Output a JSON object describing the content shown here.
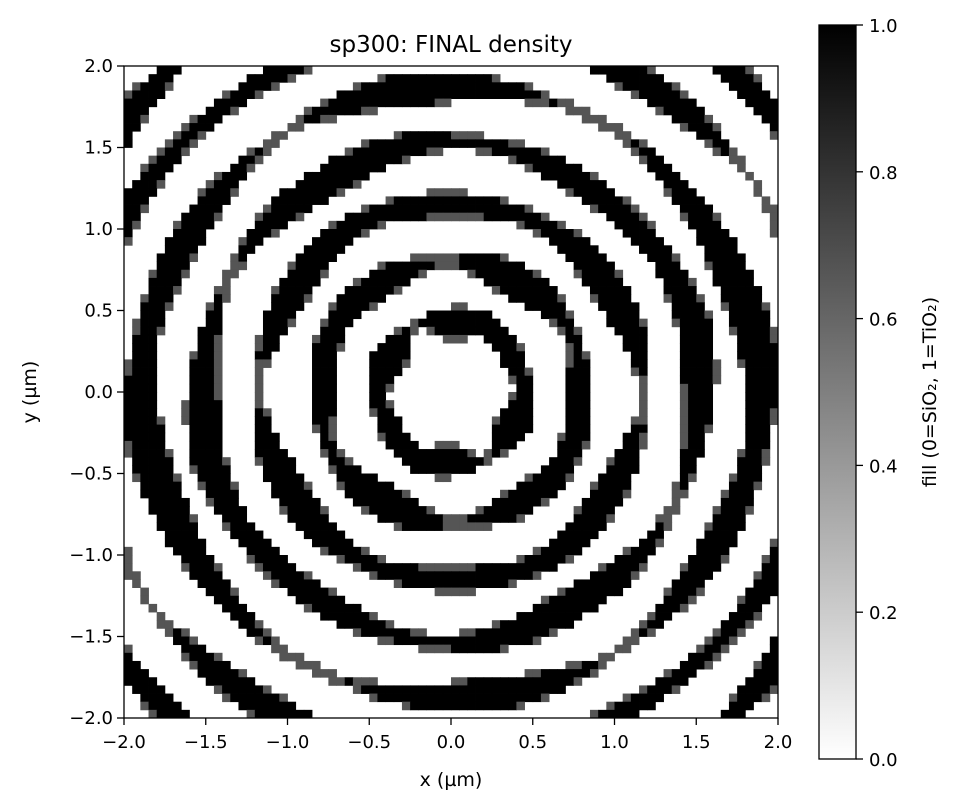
{
  "chart_data": {
    "type": "heatmap",
    "title": "sp300: FINAL density",
    "xlabel": "x (µm)",
    "ylabel": "y (µm)",
    "xlim": [
      -2.0,
      2.0
    ],
    "ylim": [
      -2.0,
      2.0
    ],
    "xticks": [
      -2.0,
      -1.5,
      -1.0,
      -0.5,
      0.0,
      0.5,
      1.0,
      1.5,
      2.0
    ],
    "xtick_labels": [
      "−2.0",
      "−1.5",
      "−1.0",
      "−0.5",
      "0.0",
      "0.5",
      "1.0",
      "1.5",
      "2.0"
    ],
    "yticks": [
      2.0,
      1.5,
      1.0,
      0.5,
      0.0,
      -0.5,
      -1.0,
      -1.5,
      -2.0
    ],
    "ytick_labels": [
      "2.0",
      "1.5",
      "1.0",
      "0.5",
      "0.0",
      "−0.5",
      "−1.0",
      "−1.5",
      "−2.0"
    ],
    "colormap": "gray_r",
    "colormap_low": "#ffffff",
    "colormap_high": "#000000",
    "grid": false,
    "grid_cells": [
      80,
      80
    ],
    "pattern_description": "concentric ring pattern centered at origin, alternating black/white rings with spoke-like breaks",
    "colorbar": {
      "label": "fill (0=SiO₂, 1=TiO₂)",
      "range": [
        0.0,
        1.0
      ],
      "ticks": [
        0.0,
        0.2,
        0.4,
        0.6,
        0.8,
        1.0
      ],
      "tick_labels": [
        "0.0",
        "0.2",
        "0.4",
        "0.6",
        "0.8",
        "1.0"
      ]
    }
  }
}
